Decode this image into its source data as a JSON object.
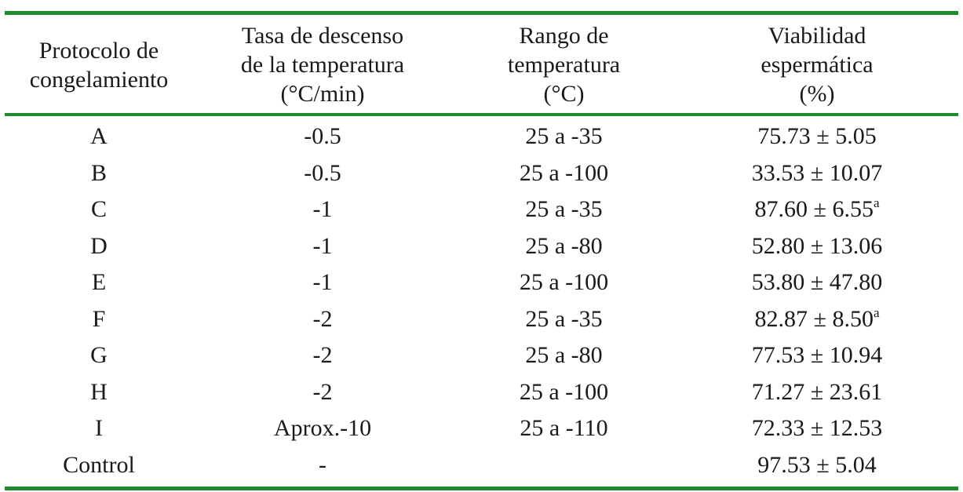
{
  "table": {
    "headers": [
      [
        "Protocolo de",
        "congelamiento"
      ],
      [
        "Tasa de descenso",
        "de la temperatura",
        "(°C/min)"
      ],
      [
        "Rango de",
        "temperatura",
        "(°C)"
      ],
      [
        "Viabilidad",
        "espermática",
        "(%)"
      ]
    ],
    "rows": [
      {
        "protocol": "A",
        "rate": "-0.5",
        "range": "25 a -35",
        "viability": "75.73 ± 5.05",
        "sup": ""
      },
      {
        "protocol": "B",
        "rate": "-0.5",
        "range": "25 a -100",
        "viability": "33.53 ± 10.07",
        "sup": ""
      },
      {
        "protocol": "C",
        "rate": "-1",
        "range": "25 a -35",
        "viability": "87.60 ± 6.55",
        "sup": "a"
      },
      {
        "protocol": "D",
        "rate": "-1",
        "range": "25 a -80",
        "viability": "52.80 ± 13.06",
        "sup": ""
      },
      {
        "protocol": "E",
        "rate": "-1",
        "range": "25 a -100",
        "viability": "53.80 ± 47.80",
        "sup": ""
      },
      {
        "protocol": "F",
        "rate": "-2",
        "range": "25 a -35",
        "viability": "82.87 ± 8.50",
        "sup": "a"
      },
      {
        "protocol": "G",
        "rate": "-2",
        "range": "25 a -80",
        "viability": "77.53 ± 10.94",
        "sup": ""
      },
      {
        "protocol": "H",
        "rate": "-2",
        "range": "25 a -100",
        "viability": "71.27 ± 23.61",
        "sup": ""
      },
      {
        "protocol": "I",
        "rate": "Aprox.-10",
        "range": "25 a -110",
        "viability": "72.33 ± 12.53",
        "sup": ""
      },
      {
        "protocol": "Control",
        "rate": "-",
        "range": "",
        "viability": "97.53 ± 5.04",
        "sup": ""
      }
    ]
  },
  "colors": {
    "rule": "#1f8a2e",
    "text": "#1a1a1a",
    "background": "#ffffff"
  }
}
